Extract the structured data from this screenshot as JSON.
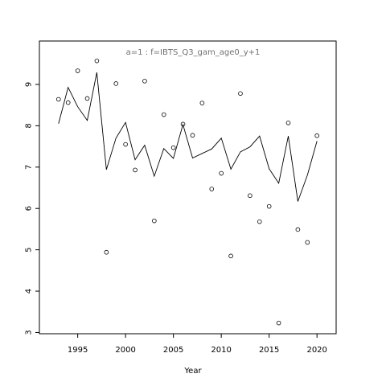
{
  "chart_data": {
    "type": "line",
    "title": "a=1  :  f=IBTS_Q3_gam_age0_y+1",
    "xlabel": "Year",
    "ylabel": "",
    "xlim": [
      1991,
      2022
    ],
    "ylim": [
      2.97,
      10.05
    ],
    "x_ticks": [
      1995,
      2000,
      2005,
      2010,
      2015,
      2020
    ],
    "y_ticks": [
      3,
      4,
      5,
      6,
      7,
      8,
      9
    ],
    "grid": false,
    "legend": "none",
    "series": [
      {
        "style": "line",
        "x": [
          1993,
          1994,
          1995,
          1996,
          1997,
          1998,
          1999,
          2000,
          2001,
          2002,
          2003,
          2004,
          2005,
          2006,
          2007,
          2008,
          2009,
          2010,
          2011,
          2012,
          2013,
          2014,
          2015,
          2016,
          2017,
          2018,
          2019,
          2020
        ],
        "values": [
          8.05,
          8.93,
          8.46,
          8.13,
          9.29,
          6.94,
          7.7,
          8.08,
          7.18,
          7.53,
          6.78,
          7.45,
          7.21,
          8.03,
          7.22,
          7.33,
          7.44,
          7.7,
          6.95,
          7.37,
          7.49,
          7.75,
          6.96,
          6.61,
          7.75,
          6.17,
          6.81,
          7.63
        ]
      },
      {
        "style": "points",
        "x": [
          1993,
          1994,
          1995,
          1996,
          1997,
          1998,
          1999,
          2000,
          2001,
          2002,
          2003,
          2004,
          2005,
          2006,
          2007,
          2008,
          2009,
          2010,
          2011,
          2012,
          2013,
          2014,
          2015,
          2016,
          2017,
          2018,
          2019,
          2020
        ],
        "values": [
          8.64,
          8.56,
          9.33,
          8.66,
          9.57,
          4.94,
          9.02,
          7.55,
          6.93,
          9.08,
          5.7,
          8.27,
          7.47,
          8.04,
          7.77,
          8.55,
          6.47,
          6.85,
          4.85,
          8.78,
          6.31,
          5.68,
          6.05,
          3.23,
          8.07,
          5.49,
          5.18,
          7.76
        ]
      }
    ]
  }
}
